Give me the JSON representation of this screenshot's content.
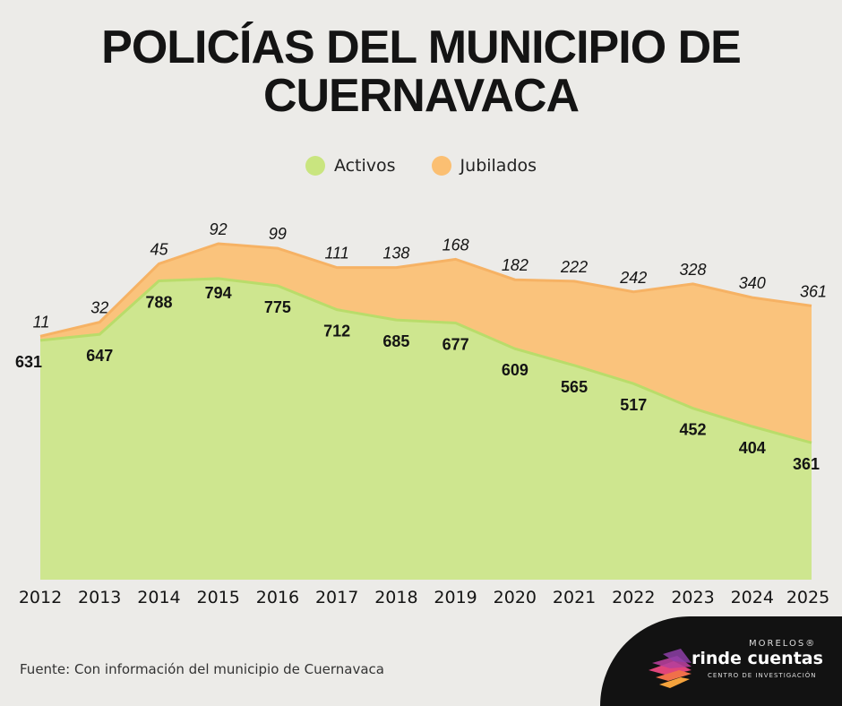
{
  "title": {
    "line1": "POLICÍAS DEL MUNICIPIO DE",
    "line2": "CUERNAVACA"
  },
  "source": "Fuente: Con información del municipio de Cuernavaca",
  "logo": {
    "top": "MORELOS®",
    "main": "rinde cuentas",
    "sub": "CENTRO DE INVESTIGACIÓN"
  },
  "colors": {
    "activos": "#c9e57f",
    "activos_line": "#b9dc6a",
    "jubilados": "#fbbf72",
    "jubilados_line": "#f6b264",
    "text": "#141414"
  },
  "chart_data": {
    "type": "area",
    "stacked": true,
    "title": "POLICÍAS DEL MUNICIPIO DE CUERNAVACA",
    "categories": [
      "2012",
      "2013",
      "2014",
      "2015",
      "2016",
      "2017",
      "2018",
      "2019",
      "2020",
      "2021",
      "2022",
      "2023",
      "2024",
      "2025"
    ],
    "series": [
      {
        "name": "Activos",
        "values": [
          631,
          647,
          788,
          794,
          775,
          712,
          685,
          677,
          609,
          565,
          517,
          452,
          404,
          361
        ]
      },
      {
        "name": "Jubilados",
        "values": [
          11,
          32,
          45,
          92,
          99,
          111,
          138,
          168,
          182,
          222,
          242,
          328,
          340,
          361
        ]
      }
    ],
    "legend_position": "top-center",
    "xlabel": "",
    "ylabel": "",
    "grid": false
  }
}
